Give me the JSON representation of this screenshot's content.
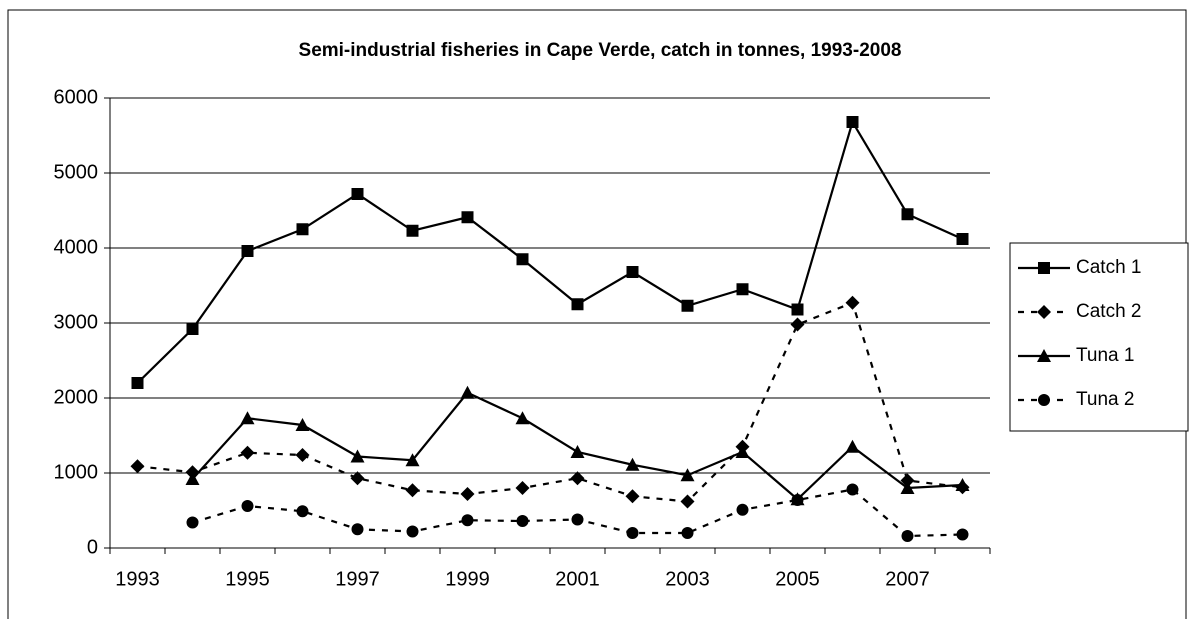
{
  "chart_data": {
    "type": "line",
    "title": "Semi-industrial fisheries in Cape Verde, catch in tonnes, 1993-2008",
    "categories": [
      "1993",
      null,
      "1995",
      null,
      "1997",
      null,
      "1999",
      null,
      "2001",
      null,
      "2003",
      null,
      "2005",
      null,
      "2007",
      null
    ],
    "series": [
      {
        "name": "Catch 1",
        "color": "#000000",
        "marker": "square",
        "dash": "solid",
        "values": [
          2200,
          2920,
          3960,
          4250,
          4720,
          4230,
          4410,
          3850,
          3250,
          3680,
          3230,
          3450,
          3180,
          5680,
          4450,
          4120
        ]
      },
      {
        "name": "Catch 2",
        "color": "#000000",
        "marker": "diamond",
        "dash": "dashed",
        "values": [
          1090,
          1010,
          1270,
          1240,
          930,
          770,
          720,
          800,
          930,
          690,
          620,
          1350,
          2980,
          3270,
          900,
          810
        ]
      },
      {
        "name": "Tuna 1",
        "color": "#000000",
        "marker": "triangle",
        "dash": "solid",
        "values": [
          null,
          920,
          1730,
          1640,
          1220,
          1170,
          2070,
          1730,
          1280,
          1110,
          970,
          1280,
          650,
          1350,
          800,
          840
        ]
      },
      {
        "name": "Tuna 2",
        "color": "#000000",
        "marker": "circle",
        "dash": "dashed",
        "values": [
          null,
          340,
          560,
          490,
          250,
          220,
          370,
          360,
          380,
          200,
          200,
          510,
          640,
          780,
          160,
          180
        ]
      }
    ],
    "ylim": [
      0,
      6000
    ],
    "yticks": [
      0,
      1000,
      2000,
      3000,
      4000,
      5000,
      6000
    ],
    "grid": true,
    "legend": "right"
  }
}
